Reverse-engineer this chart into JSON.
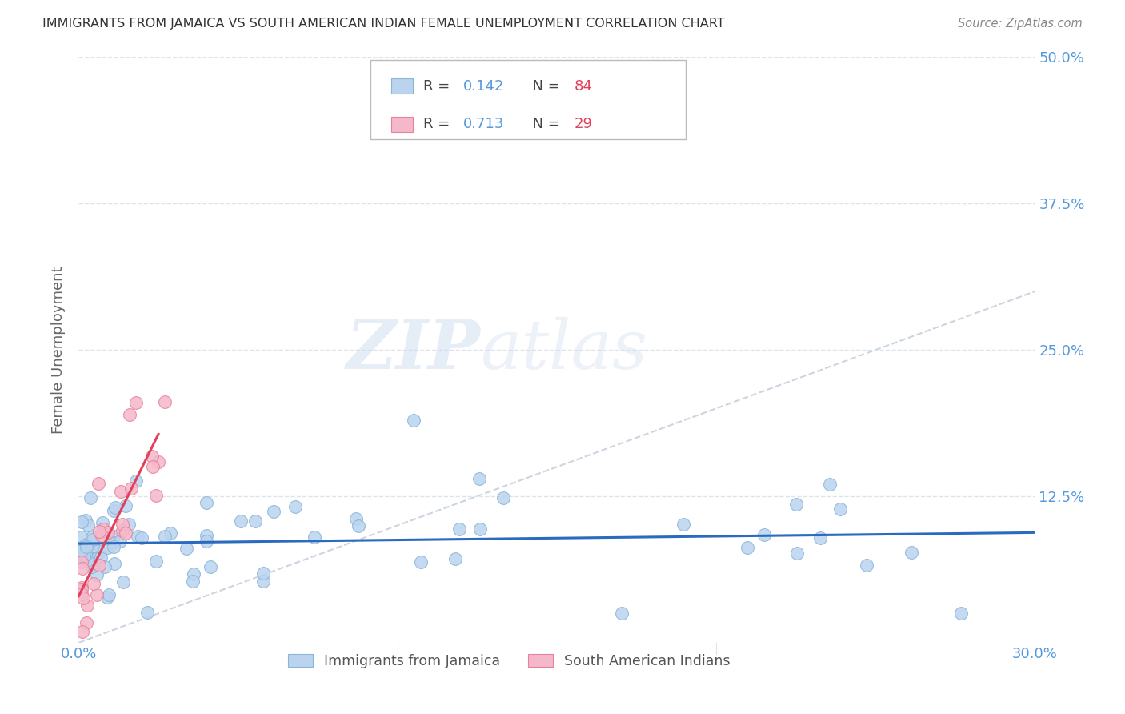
{
  "title": "IMMIGRANTS FROM JAMAICA VS SOUTH AMERICAN INDIAN FEMALE UNEMPLOYMENT CORRELATION CHART",
  "source": "Source: ZipAtlas.com",
  "ylabel": "Female Unemployment",
  "xlim": [
    0.0,
    0.3
  ],
  "ylim": [
    0.0,
    0.5
  ],
  "yticks": [
    0.125,
    0.25,
    0.375,
    0.5
  ],
  "ytick_labels": [
    "12.5%",
    "25.0%",
    "37.5%",
    "50.0%"
  ],
  "xticks": [
    0.0,
    0.1,
    0.2,
    0.3
  ],
  "xtick_labels": [
    "0.0%",
    "",
    "",
    "30.0%"
  ],
  "jamaica_color": "#bad4ef",
  "jamaica_edge": "#8ab4d9",
  "sa_indian_color": "#f5b8cb",
  "sa_indian_edge": "#e8809a",
  "diag_line_color": "#c8d0dc",
  "jamaica_trendline_color": "#2a6bbf",
  "sa_trendline_color": "#e0405a",
  "background_color": "#ffffff",
  "grid_color": "#dde3ec",
  "title_color": "#333333",
  "axis_label_color": "#666666",
  "tick_label_color": "#5599dd",
  "source_color": "#888888",
  "watermark_zip": "ZIP",
  "watermark_atlas": "atlas",
  "r1": "0.142",
  "n1": "84",
  "r2": "0.713",
  "n2": "29",
  "legend_label1": "Immigrants from Jamaica",
  "legend_label2": "South American Indians",
  "r_color": "#5599dd",
  "n_color": "#e0405a"
}
